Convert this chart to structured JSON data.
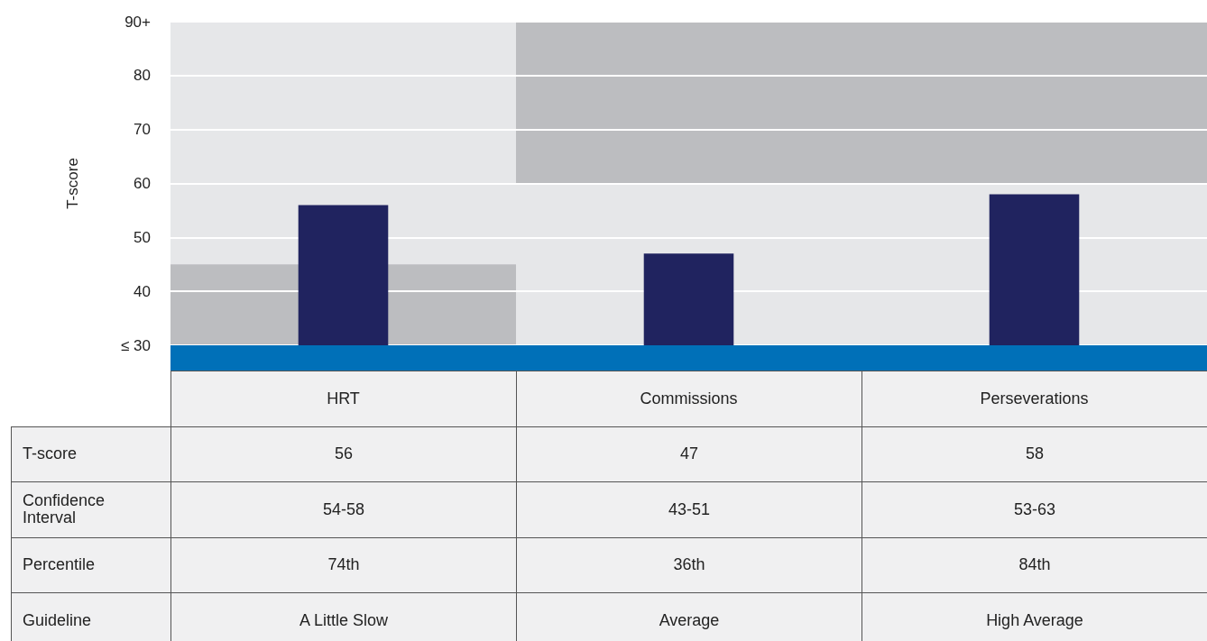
{
  "chart_data": {
    "type": "bar",
    "ylabel": "T-score",
    "categories": [
      "HRT",
      "Commissions",
      "Perseverations"
    ],
    "series": [
      {
        "values": [
          15,
          30,
          30
        ],
        "base": [
          30,
          60,
          60
        ],
        "color": "#bcbdc0"
      },
      {
        "values": [
          56,
          47,
          58
        ],
        "color": "#20235f",
        "value_labels": [
          "56",
          "47",
          "58"
        ]
      }
    ],
    "ylim": [
      30,
      90
    ],
    "yticks": [
      {
        "value": 30,
        "label": "≤ 30"
      },
      40,
      50,
      60,
      70,
      80,
      {
        "value": 90,
        "label": "90+"
      }
    ],
    "grid": "y",
    "annotations": [
      "T-score",
      "Confidence Interval",
      "54-58",
      "43-51",
      "53-63",
      "Percentile",
      "74th",
      "36th",
      "84th",
      "Guideline",
      "A Little Slow",
      "Average",
      "High Average"
    ]
  }
}
